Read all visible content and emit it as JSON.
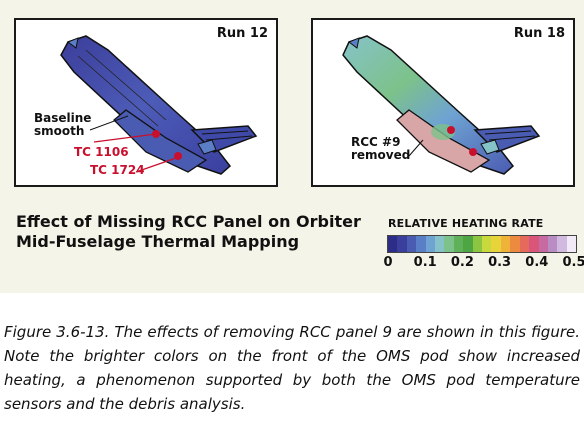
{
  "panels": [
    {
      "run_label": "Run 12",
      "annotations": {
        "baseline": "Baseline\nsmooth",
        "tc1": "TC 1106",
        "tc2": "TC 1724"
      }
    },
    {
      "run_label": "Run 18",
      "annotations": {
        "rcc": "RCC #9\nremoved"
      }
    }
  ],
  "figure_title_line1": "Effect of Missing RCC Panel on Orbiter",
  "figure_title_line2": "Mid-Fuselage Thermal Mapping",
  "legend": {
    "title": "RELATIVE HEATING RATE",
    "ticks": [
      "0",
      "0.1",
      "0.2",
      "0.3",
      "0.4",
      "0.5"
    ],
    "colors": [
      "#2c2d86",
      "#3a3f9e",
      "#4a5bb2",
      "#5b7fc6",
      "#6fa3d2",
      "#86c3c9",
      "#7cc28a",
      "#5fb25a",
      "#4ea643",
      "#8cc641",
      "#c7d93d",
      "#e7d43a",
      "#f0b33a",
      "#ec8a3f",
      "#e56a5c",
      "#d9557a",
      "#c66aa1",
      "#b98cc4",
      "#d2b9df",
      "#f2eaf6"
    ]
  },
  "caption": "Figure 3.6-13. The effects of removing RCC panel 9 are shown in this figure. Note the brighter colors on the front of the OMS pod show increased heating, a phenomenon supported by both the OMS pod temperature sensors and the debris analysis."
}
